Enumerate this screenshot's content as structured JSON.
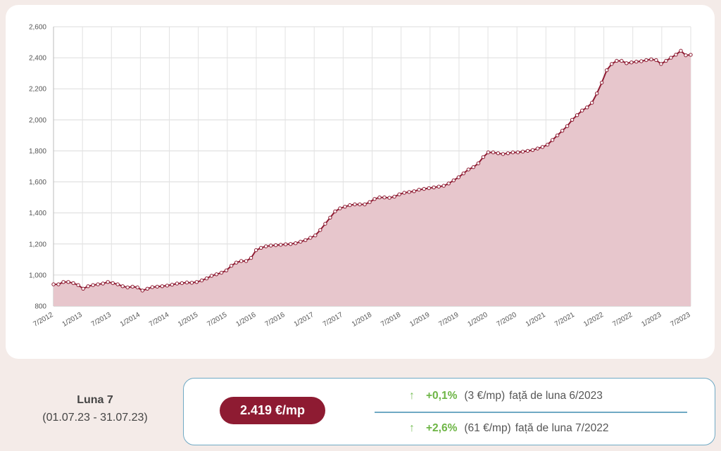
{
  "chart_data": {
    "type": "area",
    "x_tick_labels": [
      "7/2012",
      "1/2013",
      "7/2013",
      "1/2014",
      "7/2014",
      "1/2015",
      "7/2015",
      "1/2016",
      "7/2016",
      "1/2017",
      "7/2017",
      "1/2018",
      "7/2018",
      "1/2019",
      "7/2019",
      "1/2020",
      "7/2020",
      "1/2021",
      "7/2021",
      "1/2022",
      "7/2022",
      "1/2023",
      "7/2023"
    ],
    "y_tick_labels": [
      "800",
      "1,000",
      "1,200",
      "1,400",
      "1,600",
      "1,800",
      "2,000",
      "2,200",
      "2,400",
      "2,600"
    ],
    "ylim": [
      800,
      2600
    ],
    "x_range": [
      "7/2012",
      "7/2023"
    ],
    "grid": true,
    "series": [
      {
        "color": "#8e1b32",
        "fill": "#e7c6cc",
        "values": [
          940,
          940,
          955,
          955,
          948,
          935,
          912,
          928,
          935,
          940,
          945,
          955,
          948,
          940,
          928,
          920,
          925,
          920,
          900,
          912,
          922,
          925,
          928,
          932,
          938,
          945,
          948,
          952,
          950,
          955,
          965,
          978,
          995,
          1005,
          1015,
          1030,
          1060,
          1080,
          1090,
          1090,
          1110,
          1160,
          1175,
          1185,
          1190,
          1192,
          1195,
          1198,
          1200,
          1205,
          1215,
          1225,
          1240,
          1255,
          1290,
          1330,
          1370,
          1410,
          1430,
          1440,
          1450,
          1455,
          1455,
          1455,
          1470,
          1490,
          1500,
          1500,
          1498,
          1505,
          1520,
          1530,
          1535,
          1540,
          1550,
          1555,
          1560,
          1565,
          1570,
          1575,
          1590,
          1610,
          1630,
          1655,
          1680,
          1695,
          1720,
          1760,
          1790,
          1790,
          1785,
          1780,
          1785,
          1790,
          1790,
          1795,
          1800,
          1805,
          1815,
          1825,
          1840,
          1870,
          1900,
          1930,
          1960,
          2000,
          2030,
          2060,
          2080,
          2110,
          2170,
          2240,
          2320,
          2360,
          2380,
          2380,
          2365,
          2370,
          2375,
          2378,
          2385,
          2390,
          2385,
          2360,
          2380,
          2400,
          2420,
          2445,
          2416,
          2419
        ]
      }
    ]
  },
  "period": {
    "month_label": "Luna 7",
    "range_label": "(01.07.23 - 31.07.23)"
  },
  "stats": {
    "price": "2.419 €/mp",
    "monthly": {
      "arrow": "↑",
      "percent": "+0,1%",
      "absolute": "(3 €/mp)",
      "text": "față de luna 6/2023"
    },
    "yearly": {
      "arrow": "↑",
      "percent": "+2,6%",
      "absolute": "(61 €/mp)",
      "text": "față de luna 7/2022"
    }
  },
  "colors": {
    "accent": "#8e1b32",
    "positive": "#6db545",
    "border": "#6fa9c4",
    "background": "#f4ebe8"
  }
}
